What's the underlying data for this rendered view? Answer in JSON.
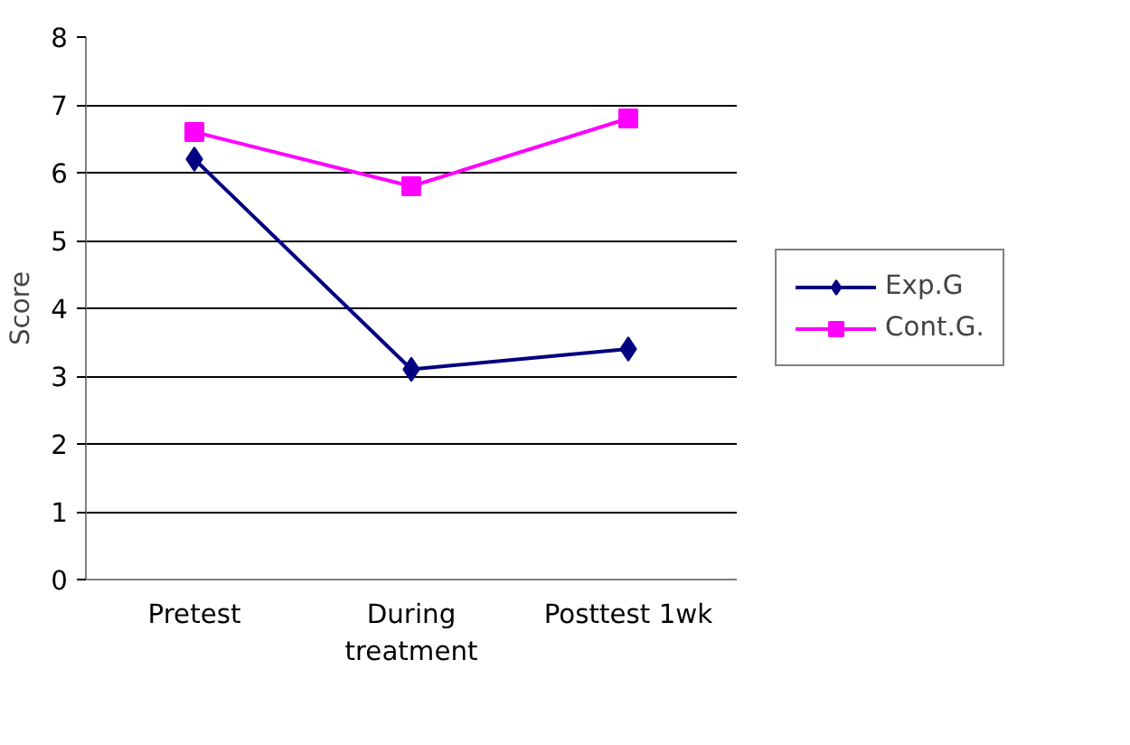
{
  "chart_data": {
    "type": "line",
    "ylabel": "Score",
    "categories": [
      "Pretest",
      "During\ntreatment",
      "Posttest 1wk"
    ],
    "series": [
      {
        "name": "Exp.G",
        "color": "#000080",
        "marker": "diamond",
        "values": [
          6.2,
          3.1,
          3.4
        ]
      },
      {
        "name": "Cont.G.",
        "color": "#ff00ff",
        "marker": "square",
        "values": [
          6.6,
          5.8,
          6.8
        ]
      }
    ],
    "ylim": [
      0,
      8
    ],
    "yticks": [
      0,
      1,
      2,
      3,
      4,
      5,
      6,
      7,
      8
    ],
    "grid": "y",
    "legend": "right",
    "line_style": "solid"
  }
}
